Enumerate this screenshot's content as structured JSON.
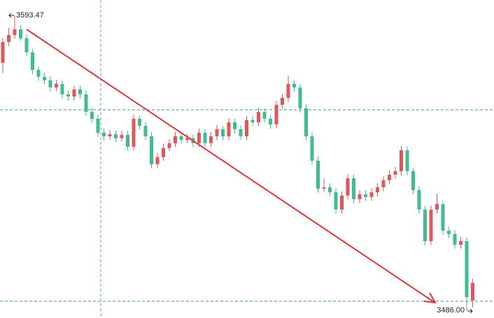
{
  "chart_data": {
    "type": "candlestick",
    "high_label": "3593.47",
    "low_label": "3486.00",
    "up_color": "#e4555a",
    "down_color": "#3dbd92",
    "ylim": [
      3483.2,
      3599.07
    ],
    "candles": [
      [
        3576.2,
        3585.3,
        3572.5,
        3583.8
      ],
      [
        3583.8,
        3588.9,
        3582.3,
        3586.3
      ],
      [
        3586.3,
        3593.47,
        3585.0,
        3588.4
      ],
      [
        3588.4,
        3590.0,
        3584.2,
        3585.1
      ],
      [
        3585.1,
        3586.6,
        3578.5,
        3580.0
      ],
      [
        3580.0,
        3581.2,
        3572.1,
        3573.6
      ],
      [
        3573.6,
        3574.8,
        3569.6,
        3571.1
      ],
      [
        3571.1,
        3572.6,
        3568.3,
        3569.8
      ],
      [
        3569.8,
        3571.3,
        3565.7,
        3567.2
      ],
      [
        3567.2,
        3570.0,
        3566.0,
        3568.5
      ],
      [
        3568.5,
        3569.8,
        3563.2,
        3564.7
      ],
      [
        3564.7,
        3566.0,
        3562.4,
        3563.9
      ],
      [
        3563.9,
        3568.0,
        3562.4,
        3566.5
      ],
      [
        3566.5,
        3567.9,
        3563.2,
        3564.7
      ],
      [
        3564.7,
        3566.2,
        3557.0,
        3558.3
      ],
      [
        3558.3,
        3559.8,
        3554.3,
        3555.8
      ],
      [
        3555.8,
        3557.3,
        3549.2,
        3550.7
      ],
      [
        3550.7,
        3552.2,
        3547.9,
        3549.4
      ],
      [
        3549.4,
        3551.7,
        3548.0,
        3550.2
      ],
      [
        3550.2,
        3551.5,
        3547.2,
        3548.7
      ],
      [
        3548.7,
        3551.4,
        3547.5,
        3549.9
      ],
      [
        3549.9,
        3551.4,
        3544.1,
        3545.6
      ],
      [
        3545.6,
        3557.3,
        3544.2,
        3555.8
      ],
      [
        3555.8,
        3557.0,
        3552.0,
        3553.2
      ],
      [
        3553.2,
        3554.7,
        3548.0,
        3549.4
      ],
      [
        3549.4,
        3550.9,
        3537.7,
        3539.2
      ],
      [
        3539.2,
        3543.3,
        3537.8,
        3541.8
      ],
      [
        3541.8,
        3546.6,
        3540.5,
        3545.1
      ],
      [
        3545.1,
        3548.4,
        3544.0,
        3546.9
      ],
      [
        3546.9,
        3550.9,
        3545.5,
        3549.4
      ],
      [
        3549.4,
        3550.8,
        3546.6,
        3548.1
      ],
      [
        3548.1,
        3550.2,
        3547.0,
        3548.7
      ],
      [
        3548.7,
        3550.0,
        3545.4,
        3546.9
      ],
      [
        3546.9,
        3552.2,
        3545.5,
        3550.7
      ],
      [
        3550.7,
        3552.0,
        3545.4,
        3546.9
      ],
      [
        3546.9,
        3550.9,
        3545.5,
        3549.4
      ],
      [
        3549.4,
        3553.5,
        3548.0,
        3552.0
      ],
      [
        3552.0,
        3553.3,
        3548.0,
        3549.4
      ],
      [
        3549.4,
        3556.0,
        3548.0,
        3554.5
      ],
      [
        3554.5,
        3555.8,
        3550.5,
        3552.0
      ],
      [
        3552.0,
        3553.4,
        3548.0,
        3549.4
      ],
      [
        3549.4,
        3556.8,
        3548.0,
        3555.3
      ],
      [
        3555.3,
        3556.6,
        3553.0,
        3554.5
      ],
      [
        3554.5,
        3559.8,
        3553.1,
        3558.3
      ],
      [
        3558.3,
        3559.6,
        3554.4,
        3555.8
      ],
      [
        3555.8,
        3557.1,
        3552.2,
        3553.7
      ],
      [
        3553.7,
        3562.4,
        3552.3,
        3560.9
      ],
      [
        3560.9,
        3564.9,
        3559.5,
        3563.4
      ],
      [
        3563.4,
        3571.5,
        3562.0,
        3568.5
      ],
      [
        3568.5,
        3569.8,
        3565.7,
        3567.2
      ],
      [
        3567.2,
        3568.5,
        3558.1,
        3559.6
      ],
      [
        3559.6,
        3561.0,
        3547.9,
        3549.4
      ],
      [
        3549.4,
        3550.8,
        3539.0,
        3540.5
      ],
      [
        3540.5,
        3542.0,
        3528.8,
        3530.3
      ],
      [
        3530.3,
        3534.0,
        3529.0,
        3530.8
      ],
      [
        3530.8,
        3532.3,
        3527.5,
        3529.0
      ],
      [
        3529.0,
        3530.4,
        3521.2,
        3522.7
      ],
      [
        3522.7,
        3529.3,
        3521.3,
        3527.8
      ],
      [
        3527.8,
        3535.6,
        3526.4,
        3534.1
      ],
      [
        3534.1,
        3535.5,
        3525.0,
        3526.5
      ],
      [
        3526.5,
        3529.8,
        3525.0,
        3528.3
      ],
      [
        3528.3,
        3529.7,
        3525.8,
        3527.3
      ],
      [
        3527.3,
        3530.5,
        3525.9,
        3529.0
      ],
      [
        3529.0,
        3532.3,
        3527.5,
        3530.8
      ],
      [
        3530.8,
        3534.9,
        3529.4,
        3533.4
      ],
      [
        3533.4,
        3536.9,
        3532.0,
        3535.4
      ],
      [
        3535.4,
        3538.2,
        3534.0,
        3536.7
      ],
      [
        3536.7,
        3545.8,
        3535.2,
        3544.3
      ],
      [
        3544.3,
        3545.7,
        3535.2,
        3536.7
      ],
      [
        3536.7,
        3538.0,
        3528.3,
        3529.8
      ],
      [
        3529.8,
        3531.2,
        3521.2,
        3522.7
      ],
      [
        3522.7,
        3524.0,
        3509.7,
        3511.2
      ],
      [
        3511.2,
        3524.2,
        3509.8,
        3522.7
      ],
      [
        3522.7,
        3528.5,
        3521.3,
        3524.7
      ],
      [
        3524.7,
        3526.0,
        3513.5,
        3515.0
      ],
      [
        3515.0,
        3516.4,
        3512.3,
        3513.8
      ],
      [
        3513.8,
        3515.2,
        3508.4,
        3509.9
      ],
      [
        3509.9,
        3512.7,
        3508.5,
        3511.2
      ],
      [
        3511.2,
        3512.6,
        3486.0,
        3490.8
      ],
      [
        3489.6,
        3497.5,
        3487.0,
        3496.0
      ]
    ]
  }
}
